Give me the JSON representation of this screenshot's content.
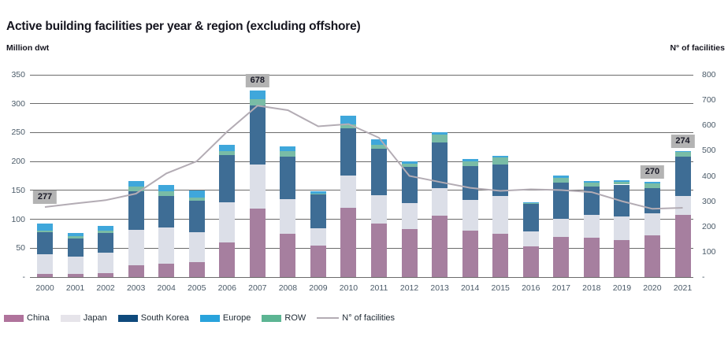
{
  "chart_data": {
    "type": "bar",
    "bar_mode": "stacked",
    "combo": "stacked-bars-with-line",
    "title": "Active building facilities per year & region (excluding offshore)",
    "left_axis": {
      "label": "Million dwt",
      "min": 0,
      "max": 350,
      "step": 50,
      "zero_tick": "-"
    },
    "right_axis": {
      "label": "N° of facilities",
      "min": 0,
      "max": 800,
      "step": 100,
      "zero_tick": "-"
    },
    "grid": "horizontal",
    "legend_position": "bottom-left",
    "categories": [
      "2000",
      "2001",
      "2002",
      "2003",
      "2004",
      "2005",
      "2006",
      "2007",
      "2008",
      "2009",
      "2010",
      "2011",
      "2012",
      "2013",
      "2014",
      "2015",
      "2016",
      "2017",
      "2018",
      "2019",
      "2020",
      "2021"
    ],
    "series": [
      {
        "name": "China",
        "color": "#a67f9f",
        "legend_color": "#b0739c",
        "values": [
          5,
          6,
          7,
          20,
          23,
          26,
          60,
          119,
          75,
          55,
          120,
          93,
          83,
          106,
          80,
          75,
          53,
          70,
          68,
          64,
          72,
          107
        ]
      },
      {
        "name": "Japan",
        "color": "#dcdfe8",
        "legend_color": "#e6e4ea",
        "values": [
          34,
          30,
          35,
          62,
          63,
          51,
          70,
          76,
          60,
          30,
          56,
          48,
          45,
          48,
          53,
          65,
          26,
          31,
          40,
          41,
          38,
          33
        ]
      },
      {
        "name": "South Korea",
        "color": "#3e6d95",
        "legend_color": "#0f4a7c",
        "values": [
          39,
          31,
          34,
          67,
          54,
          55,
          81,
          102,
          74,
          58,
          82,
          81,
          62,
          79,
          59,
          55,
          47,
          63,
          48,
          55,
          44,
          68
        ]
      },
      {
        "name": "Europe",
        "color": "#3fa7db",
        "legend_color": "#29a3dc",
        "values": [
          12,
          5,
          8,
          10,
          11,
          12,
          11,
          15,
          8,
          4,
          15,
          9,
          4,
          4,
          4,
          3,
          2,
          4,
          2,
          2,
          3,
          2
        ]
      },
      {
        "name": "ROW",
        "color": "#79bca6",
        "legend_color": "#5cb593",
        "values": [
          3,
          4,
          5,
          7,
          9,
          6,
          7,
          11,
          9,
          2,
          6,
          7,
          6,
          14,
          8,
          12,
          2,
          8,
          8,
          5,
          8,
          8
        ]
      }
    ],
    "stack_order": [
      "China",
      "Japan",
      "South Korea",
      "ROW",
      "Europe"
    ],
    "line": {
      "name": "N° of facilities",
      "color": "#b3acb4",
      "axis": "right",
      "values": [
        277,
        291,
        304,
        330,
        410,
        458,
        575,
        678,
        660,
        596,
        605,
        551,
        400,
        376,
        353,
        341,
        347,
        344,
        336,
        300,
        270,
        274
      ]
    },
    "annotations": [
      {
        "category": "2000",
        "text": "277"
      },
      {
        "category": "2007",
        "text": "678"
      },
      {
        "category": "2020",
        "text": "270"
      },
      {
        "category": "2021",
        "text": "274"
      }
    ],
    "annotation_style": {
      "background": "#b3b3b3",
      "text_color": "#191927"
    },
    "grid_color": "#6b6b6b",
    "tick_color": "#4a5a68"
  }
}
